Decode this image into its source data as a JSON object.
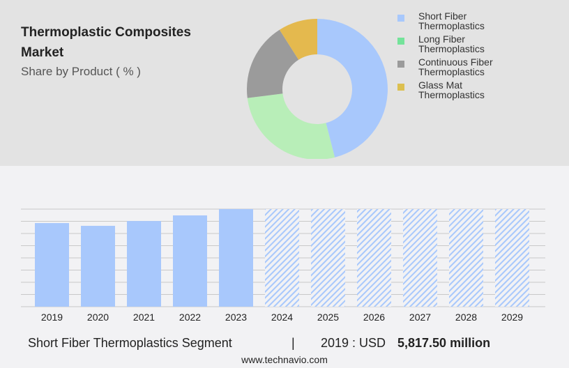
{
  "header": {
    "title": "Thermoplastic Composites Market",
    "subtitle": "Share by Product ( % )"
  },
  "chart_data": [
    {
      "type": "pie",
      "donut": true,
      "title": "Thermoplastic Composites Market",
      "subtitle": "Share by Product ( % )",
      "slices": [
        {
          "label": "Short Fiber Thermoplastics",
          "value": 46,
          "color": "#a8c8fc"
        },
        {
          "label": "Long Fiber Thermoplastics",
          "value": 27,
          "color": "#b8eeb8"
        },
        {
          "label": "Continuous Fiber Thermoplastics",
          "value": 18,
          "color": "#9b9b9b"
        },
        {
          "label": "Glass Mat Thermoplastics",
          "value": 9,
          "color": "#e4b94e"
        }
      ],
      "legend_colors": [
        "#a8c8fc",
        "#74e39a",
        "#9b9b9b",
        "#dcc050"
      ],
      "legend": "right"
    },
    {
      "type": "bar",
      "categories": [
        "2019",
        "2020",
        "2021",
        "2022",
        "2023",
        "2024",
        "2025",
        "2026",
        "2027",
        "2028",
        "2029"
      ],
      "values": [
        5817.5,
        5625,
        5960,
        6350,
        6790,
        null,
        null,
        null,
        null,
        null,
        null
      ],
      "forecast_from": "2024",
      "ylim": [
        0,
        6790
      ],
      "grid": true,
      "color": "#a8c8fc",
      "unit": "USD million"
    }
  ],
  "footer": {
    "segment": "Short Fiber Thermoplastics Segment",
    "separator": "|",
    "year_label": "2019 : USD",
    "value": "5,817.50 million",
    "website": "www.technavio.com"
  }
}
